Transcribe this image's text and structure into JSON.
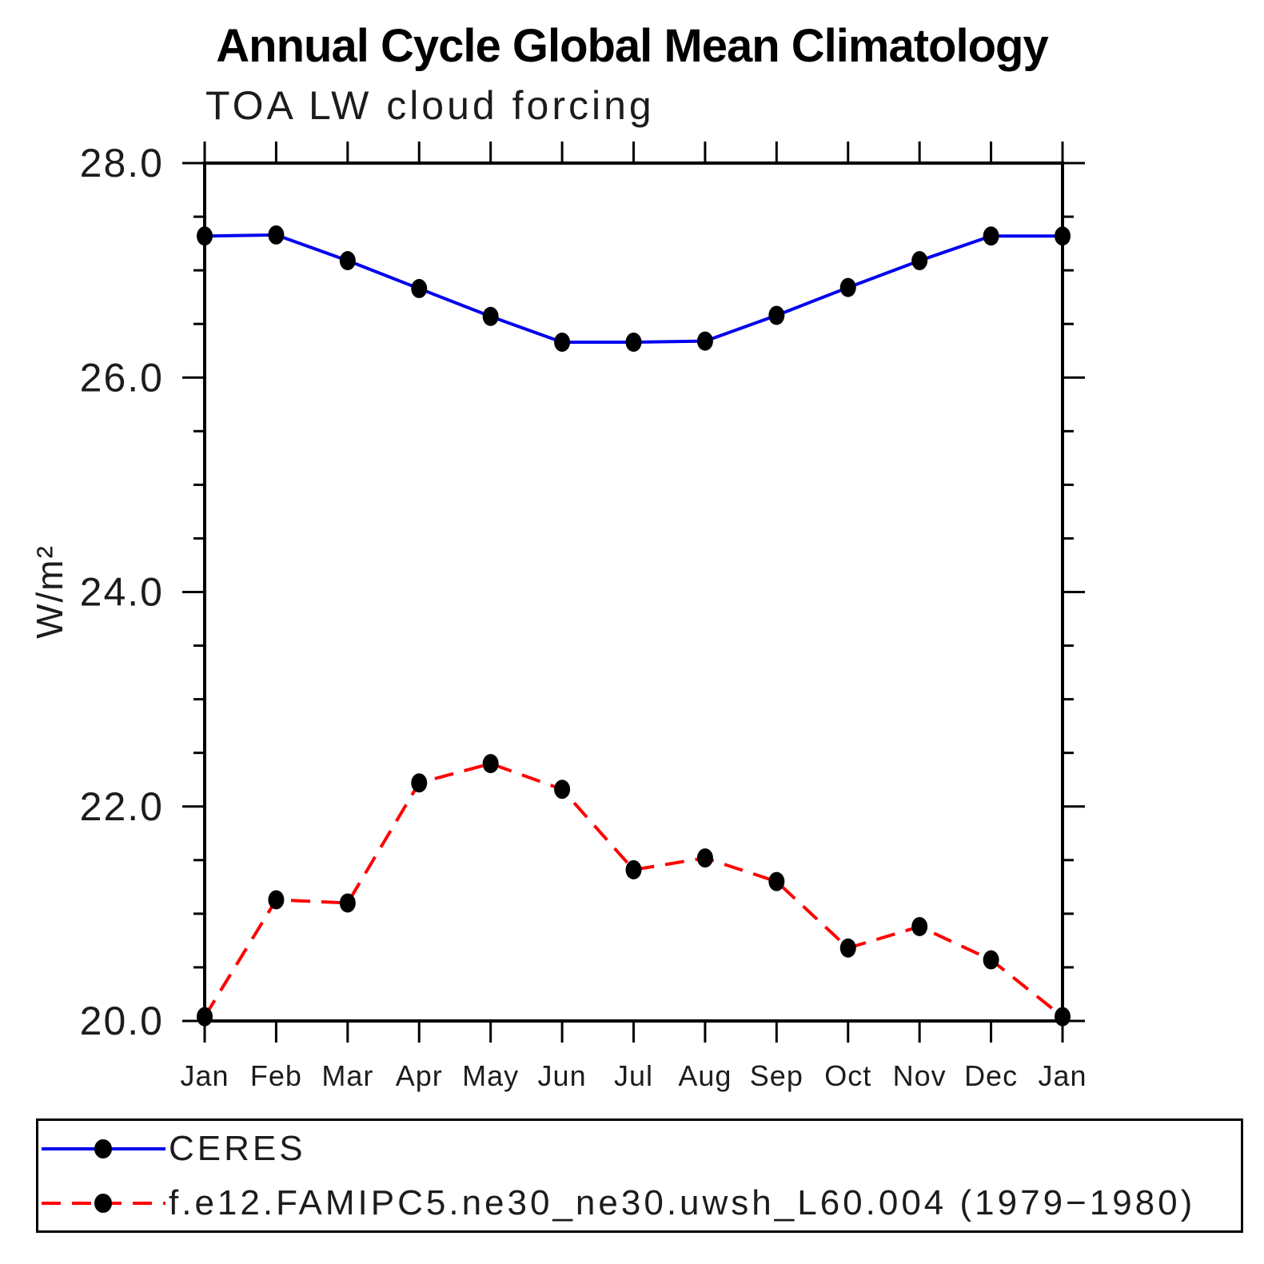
{
  "title": "Annual Cycle Global Mean Climatology",
  "subtitle": "TOA LW cloud forcing",
  "ylabel": "W/m²",
  "chart_data": {
    "type": "line",
    "categories": [
      "Jan",
      "Feb",
      "Mar",
      "Apr",
      "May",
      "Jun",
      "Jul",
      "Aug",
      "Sep",
      "Oct",
      "Nov",
      "Dec",
      "Jan"
    ],
    "series": [
      {
        "name": "CERES",
        "color": "#0000ee",
        "style": "solid",
        "values": [
          27.32,
          27.33,
          27.09,
          26.83,
          26.57,
          26.33,
          26.33,
          26.34,
          26.58,
          26.84,
          27.09,
          27.32,
          27.32
        ]
      },
      {
        "name": "f.e12.FAMIPC5.ne30_ne30.uwsh_L60.004 (1979−1980)",
        "color": "#ff0000",
        "style": "dashed",
        "values": [
          20.04,
          21.13,
          21.1,
          22.22,
          22.4,
          22.16,
          21.41,
          21.52,
          21.3,
          20.68,
          20.88,
          20.57,
          20.04
        ]
      }
    ],
    "ylim": [
      20.0,
      28.0
    ],
    "ytick_major_step": 2.0,
    "ytick_minor_step": 0.5,
    "ytick_labels": [
      "20.0",
      "22.0",
      "24.0",
      "26.0",
      "28.0"
    ],
    "marker": "filled-circle",
    "marker_color": "#000000",
    "grid": "off",
    "legend_position": "bottom-box"
  }
}
